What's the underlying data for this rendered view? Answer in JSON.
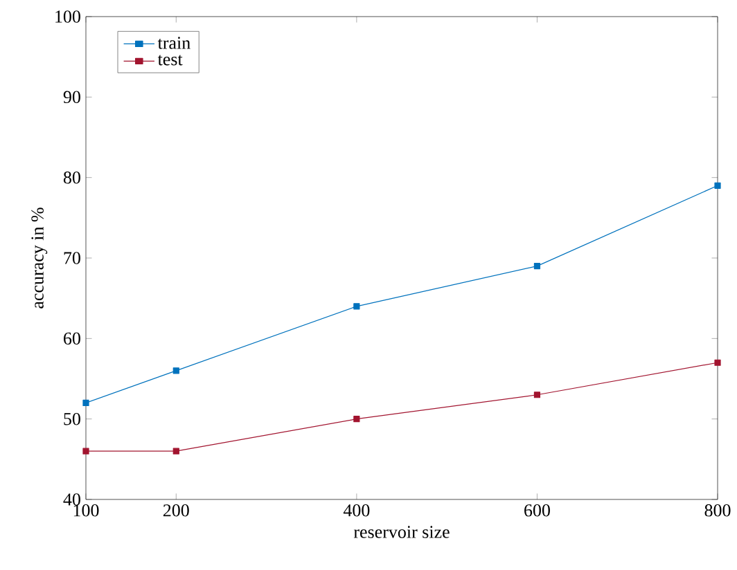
{
  "chart_data": {
    "type": "line",
    "xlabel": "reservoir size",
    "ylabel": "accuracy in %",
    "x": [
      100,
      200,
      400,
      600,
      800
    ],
    "series": [
      {
        "name": "train",
        "color": "#0072bd",
        "values": [
          52,
          56,
          64,
          69,
          79
        ]
      },
      {
        "name": "test",
        "color": "#a2142f",
        "values": [
          46,
          46,
          50,
          53,
          57
        ]
      }
    ],
    "xlim": [
      100,
      800
    ],
    "ylim": [
      40,
      100
    ],
    "xticks": [
      100,
      200,
      400,
      600,
      800
    ],
    "yticks": [
      40,
      50,
      60,
      70,
      80,
      90,
      100
    ],
    "legend": "top left",
    "marker": "square",
    "line_style": "solid",
    "grid": false
  }
}
